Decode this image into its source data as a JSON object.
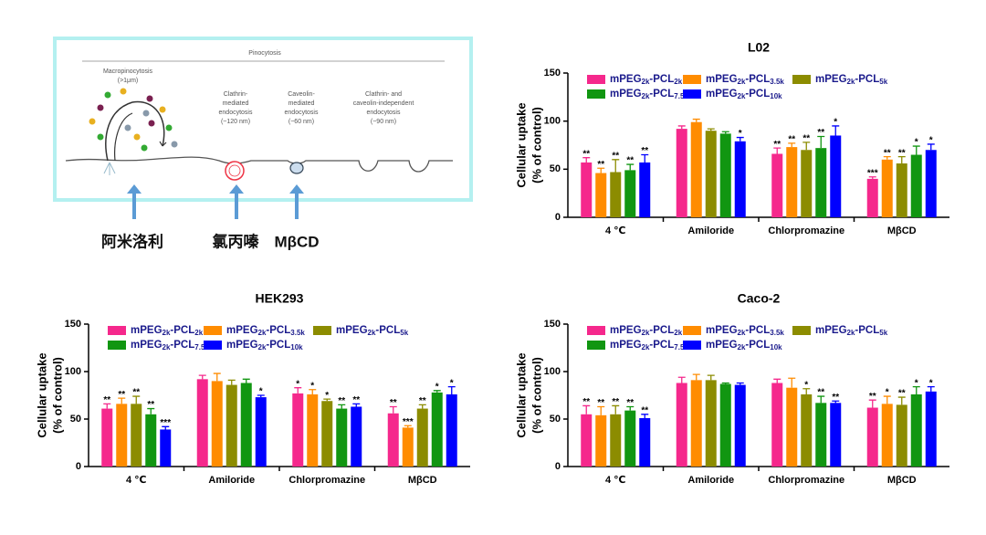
{
  "diagram": {
    "title": "Pinocytosis",
    "pathways": [
      [
        "Macropinocytosis",
        "(>1μm)"
      ],
      [
        "Clathrin-",
        "mediated",
        "endocytosis",
        "(~120 nm)"
      ],
      [
        "Caveolin-",
        "mediated",
        "endocytosis",
        "(~60 nm)"
      ],
      [
        "Clathrin- and",
        "caveolin-independent",
        "endocytosis",
        "(~90 nm)"
      ]
    ],
    "inhibitors": [
      "阿米洛利",
      "氯丙嗪",
      "MβCD"
    ]
  },
  "chart_data": [
    {
      "type": "bar",
      "title": "L02",
      "ylabel": [
        "Cellular uptake",
        "(% of control)"
      ],
      "categories": [
        "4 ℃",
        "Amiloride",
        "Chlorpromazine",
        "MβCD"
      ],
      "ylim": [
        0,
        150
      ],
      "yticks": [
        0,
        50,
        100,
        150
      ],
      "series": [
        {
          "name": "mPEG2k-PCL2k",
          "color": "#f5288c",
          "values": [
            57,
            92,
            66,
            40
          ],
          "errors": [
            5,
            3,
            6,
            2
          ],
          "stars": [
            "**",
            null,
            "**",
            "***"
          ]
        },
        {
          "name": "mPEG2k-PCL3.5k",
          "color": "#ff8c00",
          "values": [
            46,
            99,
            73,
            60
          ],
          "errors": [
            5,
            3,
            4,
            3
          ],
          "stars": [
            "**",
            null,
            "**",
            "**"
          ]
        },
        {
          "name": "mPEG2k-PCL5k",
          "color": "#8c8c00",
          "values": [
            47,
            90,
            70,
            56
          ],
          "errors": [
            13,
            2,
            8,
            7
          ],
          "stars": [
            "**",
            null,
            "**",
            "**"
          ]
        },
        {
          "name": "mPEG2k-PCL7.5k",
          "color": "#119611",
          "values": [
            49,
            87,
            72,
            65
          ],
          "errors": [
            6,
            2,
            12,
            9
          ],
          "stars": [
            "**",
            null,
            "**",
            "*"
          ]
        },
        {
          "name": "mPEG2k-PCL10k",
          "color": "#0000ff",
          "values": [
            57,
            79,
            85,
            70
          ],
          "errors": [
            8,
            4,
            10,
            6
          ],
          "stars": [
            "**",
            "*",
            "*",
            "*"
          ]
        }
      ]
    },
    {
      "type": "bar",
      "title": "HEK293",
      "ylabel": [
        "Cellular uptake",
        "(% of control)"
      ],
      "categories": [
        "4 ℃",
        "Amiloride",
        "Chlorpromazine",
        "MβCD"
      ],
      "ylim": [
        0,
        150
      ],
      "yticks": [
        0,
        50,
        100,
        150
      ],
      "series": [
        {
          "name": "mPEG2k-PCL2k",
          "color": "#f5288c",
          "values": [
            61,
            92,
            77,
            56
          ],
          "errors": [
            5,
            4,
            6,
            7
          ],
          "stars": [
            "**",
            null,
            "*",
            "**"
          ]
        },
        {
          "name": "mPEG2k-PCL3.5k",
          "color": "#ff8c00",
          "values": [
            66,
            90,
            76,
            41
          ],
          "errors": [
            6,
            8,
            5,
            2
          ],
          "stars": [
            "**",
            null,
            "*",
            "***"
          ]
        },
        {
          "name": "mPEG2k-PCL5k",
          "color": "#8c8c00",
          "values": [
            66,
            86,
            69,
            61
          ],
          "errors": [
            8,
            5,
            2,
            4
          ],
          "stars": [
            "**",
            null,
            "*",
            "**"
          ]
        },
        {
          "name": "mPEG2k-PCL7.5k",
          "color": "#119611",
          "values": [
            55,
            88,
            61,
            78
          ],
          "errors": [
            6,
            4,
            4,
            2
          ],
          "stars": [
            "**",
            null,
            "**",
            "*"
          ]
        },
        {
          "name": "mPEG2k-PCL10k",
          "color": "#0000ff",
          "values": [
            39,
            73,
            63,
            76
          ],
          "errors": [
            3,
            2,
            3,
            8
          ],
          "stars": [
            "***",
            "*",
            "**",
            "*"
          ]
        }
      ]
    },
    {
      "type": "bar",
      "title": "Caco-2",
      "ylabel": [
        "Cellular uptake",
        "(% of control)"
      ],
      "categories": [
        "4 ℃",
        "Amiloride",
        "Chlorpromazine",
        "MβCD"
      ],
      "ylim": [
        0,
        150
      ],
      "yticks": [
        0,
        50,
        100,
        150
      ],
      "series": [
        {
          "name": "mPEG2k-PCL2k",
          "color": "#f5288c",
          "values": [
            55,
            88,
            88,
            62
          ],
          "errors": [
            9,
            6,
            4,
            8
          ],
          "stars": [
            "**",
            null,
            null,
            "**"
          ]
        },
        {
          "name": "mPEG2k-PCL3.5k",
          "color": "#ff8c00",
          "values": [
            54,
            91,
            83,
            66
          ],
          "errors": [
            9,
            6,
            10,
            8
          ],
          "stars": [
            "**",
            null,
            null,
            "*"
          ]
        },
        {
          "name": "mPEG2k-PCL5k",
          "color": "#8c8c00",
          "values": [
            55,
            91,
            76,
            65
          ],
          "errors": [
            9,
            5,
            6,
            8
          ],
          "stars": [
            "**",
            null,
            "*",
            "**"
          ]
        },
        {
          "name": "mPEG2k-PCL7.5k",
          "color": "#119611",
          "values": [
            59,
            87,
            67,
            76
          ],
          "errors": [
            4,
            1,
            7,
            8
          ],
          "stars": [
            "**",
            null,
            "**",
            "*"
          ]
        },
        {
          "name": "mPEG2k-PCL10k",
          "color": "#0000ff",
          "values": [
            51,
            86,
            67,
            79
          ],
          "errors": [
            4,
            2,
            2,
            5
          ],
          "stars": [
            "**",
            null,
            "**",
            "*"
          ]
        }
      ]
    }
  ]
}
